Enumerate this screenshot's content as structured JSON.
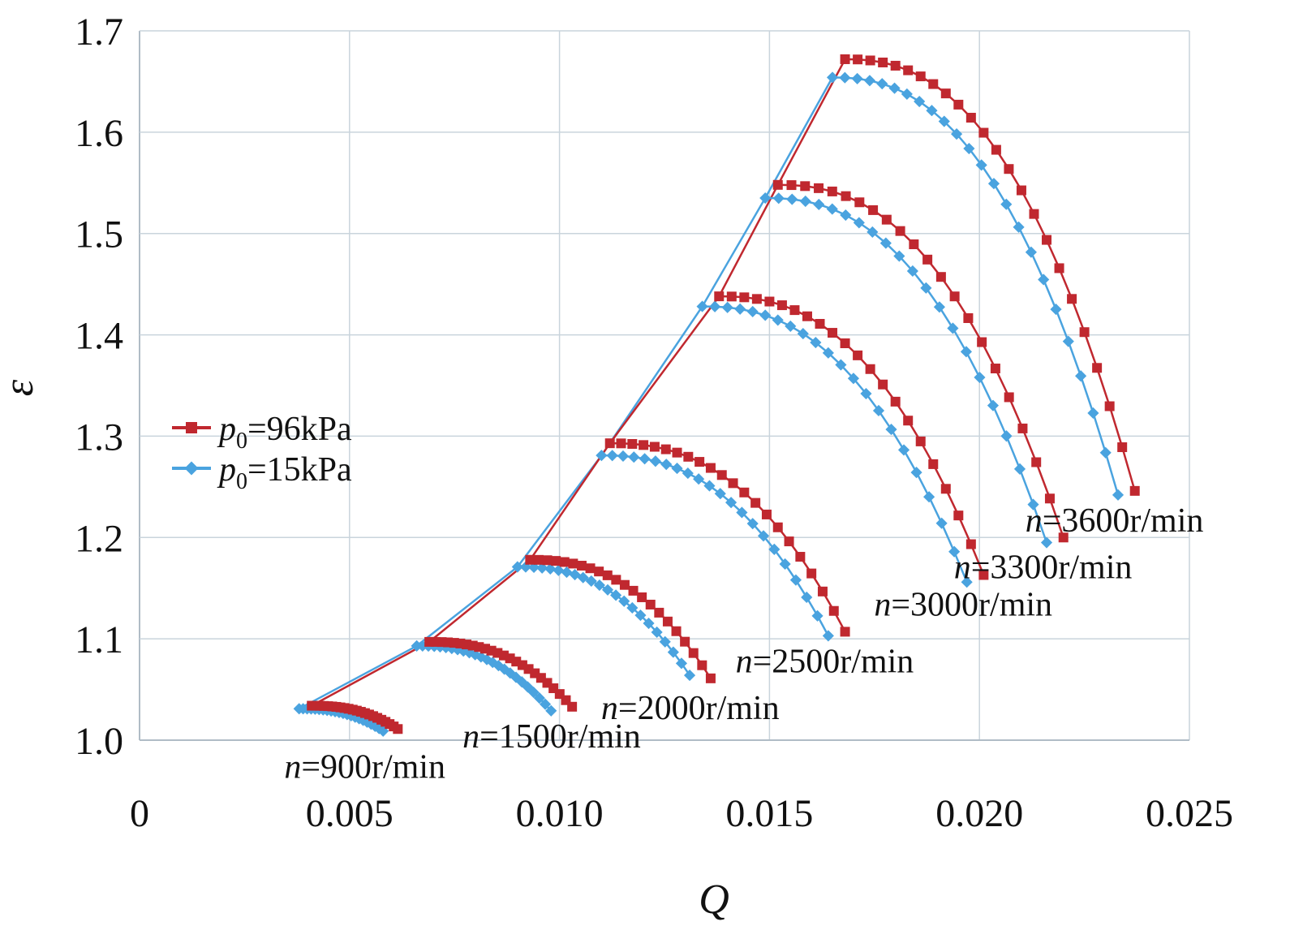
{
  "chart_data": {
    "type": "line",
    "title": "",
    "xlabel": "Q",
    "ylabel": "ε",
    "xlim": [
      0,
      0.025
    ],
    "ylim": [
      1.0,
      1.7
    ],
    "x_ticks": [
      0,
      0.005,
      0.01,
      0.015,
      0.02,
      0.025
    ],
    "x_tick_labels": [
      "0",
      "0.005",
      "0.010",
      "0.015",
      "0.020",
      "0.025"
    ],
    "y_ticks": [
      1.0,
      1.1,
      1.2,
      1.3,
      1.4,
      1.5,
      1.6,
      1.7
    ],
    "y_tick_labels": [
      "1.0",
      "1.1",
      "1.2",
      "1.3",
      "1.4",
      "1.5",
      "1.6",
      "1.7"
    ],
    "grid": true,
    "legend_position": "left-middle",
    "colors": {
      "p96": "#c0282f",
      "p15": "#4aa3df",
      "grid": "#c9d4dc"
    },
    "series": [
      {
        "name": "p0=96kPa",
        "legend_main": "p",
        "legend_sub": "0",
        "legend_value": "=96kPa",
        "marker": "square",
        "color": "#c0282f"
      },
      {
        "name": "p0=15kPa",
        "legend_main": "p",
        "legend_sub": "0",
        "legend_value": "=15kPa",
        "marker": "diamond",
        "color": "#4aa3df"
      }
    ],
    "speed_lines": [
      {
        "label_n": "n",
        "label_value": "=900r/min",
        "p96": {
          "q_start": 0.0041,
          "e_start": 1.034,
          "q_end": 0.00615,
          "e_end": 1.011,
          "points": 22
        },
        "p15": {
          "q_start": 0.0038,
          "e_start": 1.031,
          "q_end": 0.0058,
          "e_end": 1.009,
          "points": 22
        }
      },
      {
        "label_n": "n",
        "label_value": "=1500r/min",
        "p96": {
          "q_start": 0.0069,
          "e_start": 1.097,
          "q_end": 0.0103,
          "e_end": 1.033,
          "points": 24
        },
        "p15": {
          "q_start": 0.0066,
          "e_start": 1.093,
          "q_end": 0.0098,
          "e_end": 1.029,
          "points": 24
        }
      },
      {
        "label_n": "n",
        "label_value": "=2000r/min",
        "p96": {
          "q_start": 0.0093,
          "e_start": 1.178,
          "q_end": 0.0136,
          "e_end": 1.061,
          "points": 22
        },
        "p15": {
          "q_start": 0.009,
          "e_start": 1.171,
          "q_end": 0.0131,
          "e_end": 1.064,
          "points": 22
        }
      },
      {
        "label_n": "n",
        "label_value": "=2500r/min",
        "p96": {
          "q_start": 0.0112,
          "e_start": 1.293,
          "q_end": 0.0168,
          "e_end": 1.107,
          "points": 22
        },
        "p15": {
          "q_start": 0.011,
          "e_start": 1.281,
          "q_end": 0.0164,
          "e_end": 1.103,
          "points": 22
        }
      },
      {
        "label_n": "n",
        "label_value": "=3000r/min",
        "p96": {
          "q_start": 0.0138,
          "e_start": 1.438,
          "q_end": 0.0201,
          "e_end": 1.163,
          "points": 22
        },
        "p15": {
          "q_start": 0.0134,
          "e_start": 1.428,
          "q_end": 0.0197,
          "e_end": 1.156,
          "points": 22
        }
      },
      {
        "label_n": "n",
        "label_value": "=3300r/min",
        "p96": {
          "q_start": 0.0152,
          "e_start": 1.548,
          "q_end": 0.022,
          "e_end": 1.2,
          "points": 22
        },
        "p15": {
          "q_start": 0.0149,
          "e_start": 1.535,
          "q_end": 0.0216,
          "e_end": 1.195,
          "points": 22
        }
      },
      {
        "label_n": "n",
        "label_value": "=3600r/min",
        "p96": {
          "q_start": 0.0168,
          "e_start": 1.672,
          "q_end": 0.0237,
          "e_end": 1.246,
          "points": 24
        },
        "p15": {
          "q_start": 0.0165,
          "e_start": 1.654,
          "q_end": 0.0233,
          "e_end": 1.242,
          "points": 24
        }
      }
    ]
  }
}
